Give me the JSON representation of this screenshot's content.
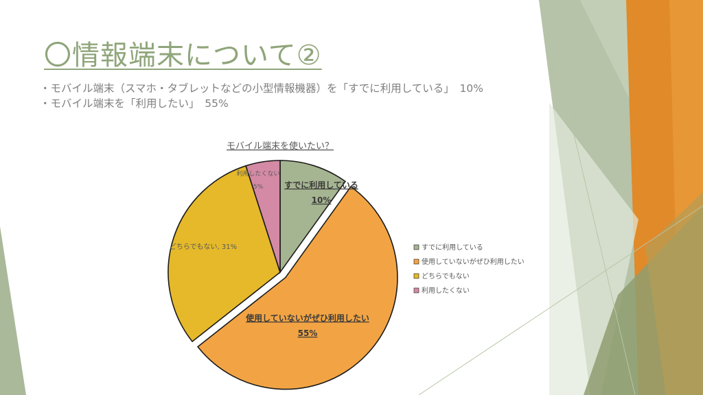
{
  "slide": {
    "title": "〇情報端末について②",
    "bullets": [
      "・モバイル端末（スマホ・タブレットなどの小型情報機器）を「すでに利用している」　10%",
      "・モバイル端末を「利用したい」　55%"
    ]
  },
  "colors": {
    "title": "#8fa57a",
    "text": "#7f7f7f",
    "deco_green": "#a9b99a",
    "deco_orange": "#e08a2a"
  },
  "chart_data": {
    "type": "pie",
    "title": "モバイル端末を使いたい？",
    "legend_position": "right",
    "slices": [
      {
        "name": "すでに利用している",
        "value": 10,
        "color": "#a6b591",
        "label_line1": "すでに利用している",
        "label_line2": "10%",
        "exploded": false
      },
      {
        "name": "使用していないがぜひ利用したい",
        "value": 55,
        "color": "#f2a444",
        "label_line1": "使用していないがぜひ利用したい",
        "label_line2": "55%",
        "exploded": true
      },
      {
        "name": "どちらでもない",
        "value": 31,
        "color": "#e5b92a",
        "label_line1": "どちらでもない, 31%",
        "label_line2": "",
        "exploded": false
      },
      {
        "name": "利用したくない",
        "value": 5,
        "color": "#d48aa4",
        "label_line1": "利用したくない",
        "label_line2": "5%",
        "exploded": false
      }
    ]
  }
}
